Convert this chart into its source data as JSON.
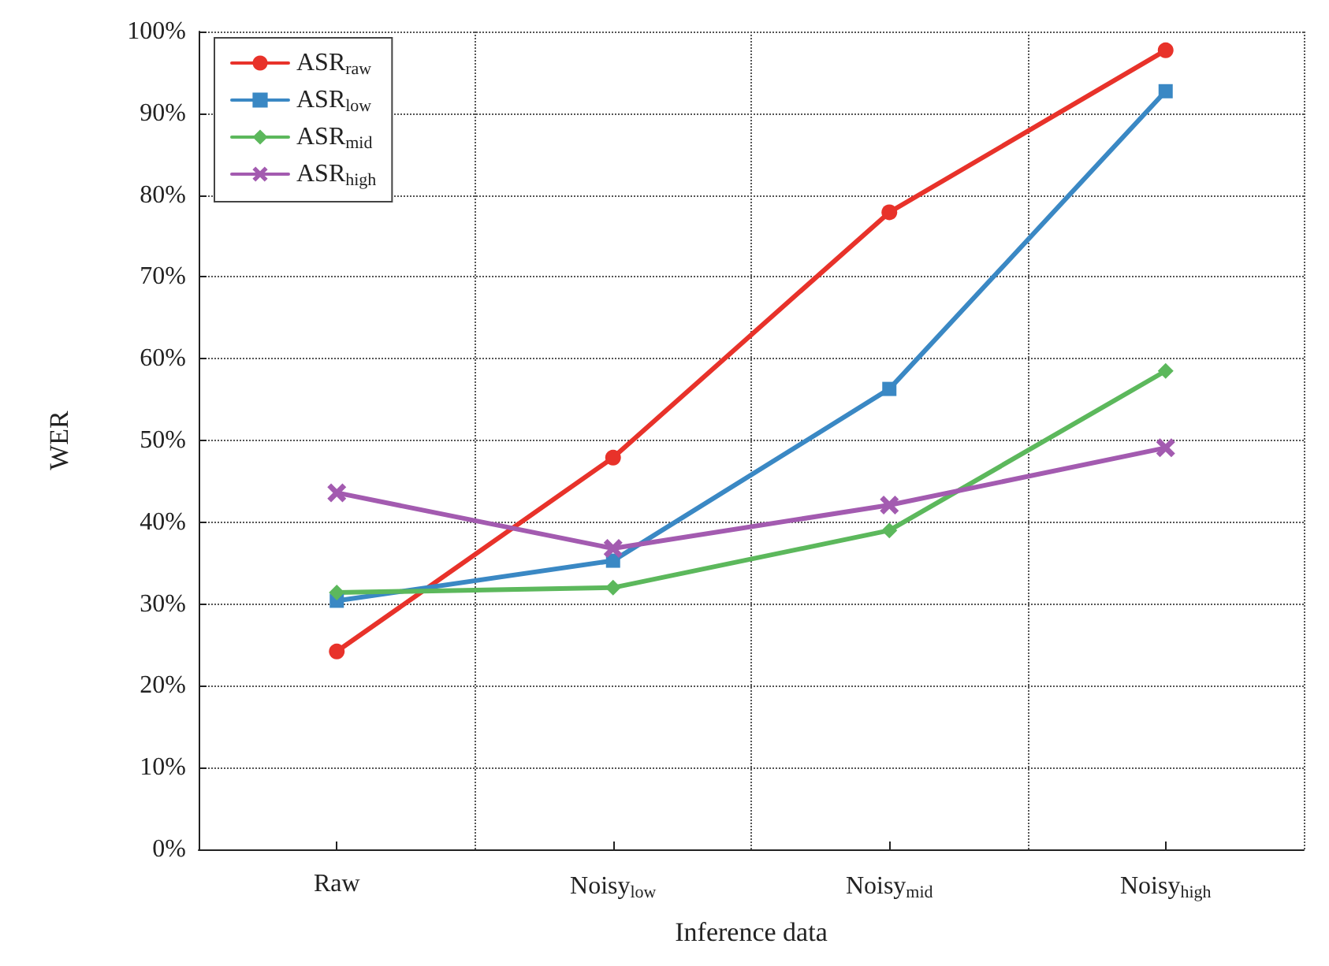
{
  "chart_data": {
    "type": "line",
    "xlabel": "Inference data",
    "ylabel": "WER",
    "categories": [
      "Raw",
      "Noisy$_{low}$",
      "Noisy$_{mid}$",
      "Noisy$_{high}$"
    ],
    "series": [
      {
        "name": "ASR$_{raw}$",
        "color": "#e8322a",
        "marker": "circle",
        "values": [
          24.2,
          47.9,
          77.9,
          97.7
        ]
      },
      {
        "name": "ASR$_{low}$",
        "color": "#3a88c4",
        "marker": "square",
        "values": [
          30.4,
          35.3,
          56.3,
          92.7
        ]
      },
      {
        "name": "ASR$_{mid}$",
        "color": "#5cb85c",
        "marker": "diamond",
        "values": [
          31.4,
          32.0,
          39.0,
          58.5
        ]
      },
      {
        "name": "ASR$_{high}$",
        "color": "#a35bb0",
        "marker": "cross",
        "values": [
          43.6,
          36.8,
          42.1,
          49.1
        ]
      }
    ],
    "ylim": [
      0,
      100
    ],
    "yticks": [
      {
        "value": 0,
        "label": "0%"
      },
      {
        "value": 10,
        "label": "10%"
      },
      {
        "value": 20,
        "label": "20%"
      },
      {
        "value": 30,
        "label": "30%"
      },
      {
        "value": 40,
        "label": "40%"
      },
      {
        "value": 50,
        "label": "50%"
      },
      {
        "value": 60,
        "label": "60%"
      },
      {
        "value": 70,
        "label": "70%"
      },
      {
        "value": 80,
        "label": "80%"
      },
      {
        "value": 90,
        "label": "90%"
      },
      {
        "value": 100,
        "label": "100%"
      }
    ],
    "grid": true,
    "legend": "top left",
    "line_style": "solid"
  }
}
